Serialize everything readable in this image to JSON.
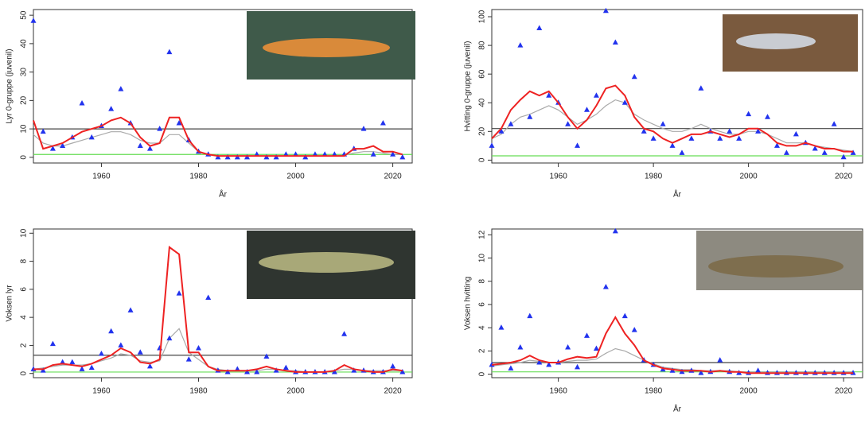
{
  "chart_data": [
    {
      "type": "line",
      "ylabel": "Lyr 0-gruppe (juvenil)",
      "xlabel": "År",
      "x": [
        1946,
        1948,
        1950,
        1952,
        1954,
        1956,
        1958,
        1960,
        1962,
        1964,
        1966,
        1968,
        1970,
        1972,
        1974,
        1976,
        1978,
        1980,
        1982,
        1984,
        1986,
        1988,
        1990,
        1992,
        1994,
        1996,
        1998,
        2000,
        2002,
        2004,
        2006,
        2008,
        2010,
        2012,
        2014,
        2016,
        2018,
        2020,
        2022
      ],
      "xlim": [
        1946,
        2024
      ],
      "xticks": [
        1960,
        1980,
        2000,
        2020
      ],
      "ylim": [
        -2,
        52
      ],
      "yticks": [
        0,
        10,
        20,
        30,
        40,
        50
      ],
      "hlines": [
        {
          "value": 10,
          "color": "#444444"
        },
        {
          "value": 1,
          "color": "#66dd55"
        }
      ],
      "series": [
        {
          "style": "points",
          "color": "#2233ee",
          "values": [
            48,
            9,
            3,
            4,
            7,
            19,
            7,
            11,
            17,
            24,
            12,
            4,
            3,
            10,
            37,
            12,
            6,
            2,
            1,
            0,
            0,
            0,
            0,
            1,
            0,
            0,
            1,
            1,
            0,
            1,
            1,
            1,
            1,
            3,
            10,
            1,
            12,
            1,
            0
          ]
        },
        {
          "style": "line",
          "color": "#ee2222",
          "values": [
            13,
            3,
            4,
            5,
            7,
            9,
            10,
            11,
            13,
            14,
            12,
            7,
            4,
            5,
            14,
            14,
            6,
            2,
            1,
            0.5,
            0.5,
            0.5,
            0.5,
            0.5,
            0.5,
            0.5,
            0.5,
            0.5,
            0.5,
            0.5,
            0.5,
            0.5,
            0.5,
            3,
            3,
            4,
            2,
            2,
            1
          ]
        },
        {
          "style": "line",
          "color": "#aaaaaa",
          "values": [
            8,
            5,
            4,
            4,
            5,
            6,
            7,
            8,
            9,
            9,
            8,
            6,
            5,
            5,
            8,
            8,
            5,
            2,
            1,
            0.5,
            0.5,
            0.5,
            0.5,
            0.5,
            0.5,
            0.5,
            0.5,
            0.5,
            0.5,
            0.5,
            0.5,
            0.5,
            0.8,
            1.5,
            2,
            2,
            1.5,
            1,
            1
          ]
        }
      ]
    },
    {
      "type": "line",
      "ylabel": "Hvitting 0-gruppe (juvenil)",
      "xlabel": "År",
      "x": [
        1946,
        1948,
        1950,
        1952,
        1954,
        1956,
        1958,
        1960,
        1962,
        1964,
        1966,
        1968,
        1970,
        1972,
        1974,
        1976,
        1978,
        1980,
        1982,
        1984,
        1986,
        1988,
        1990,
        1992,
        1994,
        1996,
        1998,
        2000,
        2002,
        2004,
        2006,
        2008,
        2010,
        2012,
        2014,
        2016,
        2018,
        2020,
        2022
      ],
      "xlim": [
        1946,
        2024
      ],
      "xticks": [
        1960,
        1980,
        2000,
        2020
      ],
      "ylim": [
        -2,
        105
      ],
      "yticks": [
        0,
        20,
        40,
        60,
        80,
        100
      ],
      "hlines": [
        {
          "value": 22,
          "color": "#444444"
        },
        {
          "value": 3,
          "color": "#66dd55"
        }
      ],
      "series": [
        {
          "style": "points",
          "color": "#2233ee",
          "values": [
            10,
            20,
            25,
            80,
            30,
            92,
            45,
            40,
            25,
            10,
            35,
            45,
            104,
            82,
            40,
            58,
            20,
            15,
            25,
            10,
            5,
            15,
            50,
            20,
            15,
            20,
            15,
            32,
            20,
            30,
            10,
            5,
            18,
            12,
            8,
            5,
            25,
            2,
            5
          ]
        },
        {
          "style": "line",
          "color": "#ee2222",
          "values": [
            15,
            22,
            35,
            42,
            48,
            45,
            48,
            40,
            30,
            22,
            28,
            38,
            50,
            52,
            45,
            30,
            22,
            20,
            15,
            12,
            15,
            18,
            18,
            20,
            18,
            16,
            18,
            22,
            22,
            18,
            12,
            10,
            10,
            12,
            10,
            8,
            8,
            6,
            6
          ]
        },
        {
          "style": "line",
          "color": "#aaaaaa",
          "values": [
            15,
            18,
            25,
            30,
            32,
            35,
            38,
            35,
            30,
            25,
            28,
            32,
            38,
            42,
            40,
            32,
            28,
            25,
            22,
            20,
            20,
            22,
            25,
            22,
            20,
            18,
            18,
            20,
            20,
            18,
            15,
            12,
            12,
            12,
            10,
            9,
            8,
            7,
            6
          ]
        }
      ]
    },
    {
      "type": "line",
      "ylabel": "Voksen lyr",
      "xlabel": "",
      "x": [
        1946,
        1948,
        1950,
        1952,
        1954,
        1956,
        1958,
        1960,
        1962,
        1964,
        1966,
        1968,
        1970,
        1972,
        1974,
        1976,
        1978,
        1980,
        1982,
        1984,
        1986,
        1988,
        1990,
        1992,
        1994,
        1996,
        1998,
        2000,
        2002,
        2004,
        2006,
        2008,
        2010,
        2012,
        2014,
        2016,
        2018,
        2020,
        2022
      ],
      "xlim": [
        1946,
        2024
      ],
      "xticks": [
        1960,
        1980,
        2000,
        2020
      ],
      "ylim": [
        -0.3,
        10.3
      ],
      "yticks": [
        0,
        2,
        4,
        6,
        8,
        10
      ],
      "hlines": [
        {
          "value": 1.3,
          "color": "#444444"
        },
        {
          "value": 0.1,
          "color": "#66dd55"
        }
      ],
      "series": [
        {
          "style": "points",
          "color": "#2233ee",
          "values": [
            0.3,
            0.2,
            2.1,
            0.8,
            0.8,
            0.3,
            0.4,
            1.4,
            3,
            2,
            4.5,
            1.5,
            0.5,
            1.8,
            2.5,
            5.7,
            1,
            1.8,
            5.4,
            0.2,
            0.1,
            0.3,
            0.1,
            0.1,
            1.2,
            0.2,
            0.4,
            0.1,
            0.1,
            0.1,
            0.1,
            0.1,
            2.8,
            0.2,
            0.2,
            0.1,
            0.1,
            0.5,
            0.1
          ]
        },
        {
          "style": "line",
          "color": "#ee2222",
          "values": [
            0.3,
            0.3,
            0.6,
            0.7,
            0.6,
            0.5,
            0.7,
            1,
            1.3,
            1.8,
            1.5,
            0.8,
            0.7,
            1,
            9,
            8.5,
            1.5,
            1.5,
            0.5,
            0.2,
            0.2,
            0.2,
            0.2,
            0.3,
            0.5,
            0.3,
            0.2,
            0.1,
            0.1,
            0.1,
            0.1,
            0.2,
            0.6,
            0.3,
            0.2,
            0.1,
            0.1,
            0.3,
            0.2
          ]
        },
        {
          "style": "line",
          "color": "#aaaaaa",
          "values": [
            0.3,
            0.4,
            0.5,
            0.6,
            0.6,
            0.6,
            0.7,
            0.9,
            1.1,
            1.4,
            1.3,
            0.9,
            0.8,
            0.9,
            2.5,
            3.2,
            1.5,
            1,
            0.5,
            0.3,
            0.2,
            0.2,
            0.2,
            0.2,
            0.3,
            0.3,
            0.2,
            0.2,
            0.1,
            0.1,
            0.1,
            0.2,
            0.3,
            0.3,
            0.2,
            0.2,
            0.2,
            0.2,
            0.2
          ]
        }
      ]
    },
    {
      "type": "line",
      "ylabel": "Voksen hvitting",
      "xlabel": "År",
      "x": [
        1946,
        1948,
        1950,
        1952,
        1954,
        1956,
        1958,
        1960,
        1962,
        1964,
        1966,
        1968,
        1970,
        1972,
        1974,
        1976,
        1978,
        1980,
        1982,
        1984,
        1986,
        1988,
        1990,
        1992,
        1994,
        1996,
        1998,
        2000,
        2002,
        2004,
        2006,
        2008,
        2010,
        2012,
        2014,
        2016,
        2018,
        2020,
        2022
      ],
      "xlim": [
        1946,
        2024
      ],
      "xticks": [
        1960,
        1980,
        2000,
        2020
      ],
      "ylim": [
        -0.3,
        12.5
      ],
      "yticks": [
        0,
        2,
        4,
        6,
        8,
        10,
        12
      ],
      "hlines": [
        {
          "value": 1,
          "color": "#444444"
        },
        {
          "value": 0.2,
          "color": "#66dd55"
        }
      ],
      "series": [
        {
          "style": "points",
          "color": "#2233ee",
          "values": [
            0.8,
            4,
            0.5,
            2.3,
            5,
            1,
            0.8,
            1,
            2.3,
            0.6,
            3.3,
            2.2,
            7.5,
            12.3,
            5,
            3.8,
            1.2,
            0.8,
            0.4,
            0.3,
            0.2,
            0.3,
            0.1,
            0.2,
            1.2,
            0.2,
            0.1,
            0.1,
            0.3,
            0.1,
            0.1,
            0.1,
            0.1,
            0.1,
            0.1,
            0.1,
            0.1,
            0.1,
            0.1
          ]
        },
        {
          "style": "line",
          "color": "#ee2222",
          "values": [
            0.8,
            0.9,
            1,
            1.2,
            1.6,
            1.2,
            1,
            1,
            1.3,
            1.5,
            1.4,
            1.5,
            3.5,
            4.9,
            3.5,
            2.5,
            1.2,
            0.8,
            0.5,
            0.4,
            0.3,
            0.3,
            0.3,
            0.2,
            0.3,
            0.2,
            0.2,
            0.1,
            0.1,
            0.1,
            0.1,
            0.1,
            0.1,
            0.1,
            0.1,
            0.1,
            0.1,
            0.1,
            0.1
          ]
        },
        {
          "style": "line",
          "color": "#aaaaaa",
          "values": [
            0.7,
            0.8,
            0.9,
            1,
            1.2,
            1.1,
            1,
            1,
            1.1,
            1.2,
            1.2,
            1.3,
            1.8,
            2.2,
            2,
            1.6,
            1.2,
            0.9,
            0.6,
            0.5,
            0.4,
            0.4,
            0.3,
            0.3,
            0.3,
            0.3,
            0.2,
            0.2,
            0.2,
            0.2,
            0.2,
            0.2,
            0.2,
            0.2,
            0.2,
            0.2,
            0.2,
            0.2,
            0.2
          ]
        }
      ]
    }
  ]
}
